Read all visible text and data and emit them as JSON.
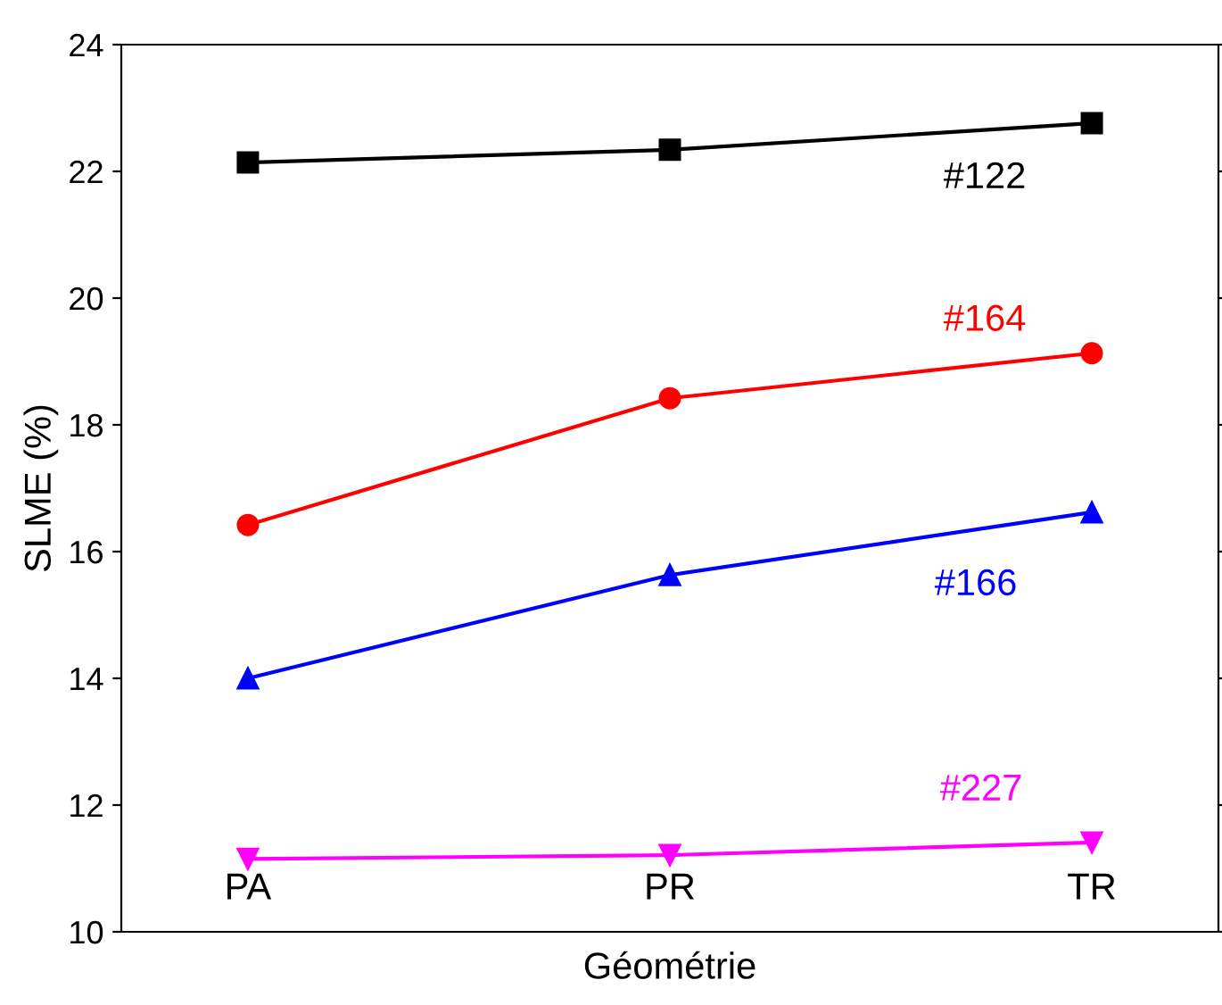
{
  "chart_data": {
    "type": "line",
    "xlabel": "Géométrie",
    "ylabel": "SLME (%)",
    "categories": [
      "PA",
      "PR",
      "TR"
    ],
    "ylim": [
      10,
      24
    ],
    "yticks": [
      10,
      12,
      14,
      16,
      18,
      20,
      22,
      24
    ],
    "grid": false,
    "legend": false,
    "series": [
      {
        "name": "#122",
        "color": "#000000",
        "marker": "square",
        "values": [
          22.14,
          22.34,
          22.76
        ]
      },
      {
        "name": "#164",
        "color": "#ff0000",
        "marker": "circle",
        "values": [
          16.42,
          18.42,
          19.13
        ]
      },
      {
        "name": "#166",
        "color": "#0000ff",
        "marker": "triangle",
        "values": [
          14.0,
          15.63,
          16.62
        ]
      },
      {
        "name": "#227",
        "color": "#ff00ff",
        "marker": "triangle_down",
        "values": [
          11.15,
          11.21,
          11.41
        ]
      }
    ]
  }
}
